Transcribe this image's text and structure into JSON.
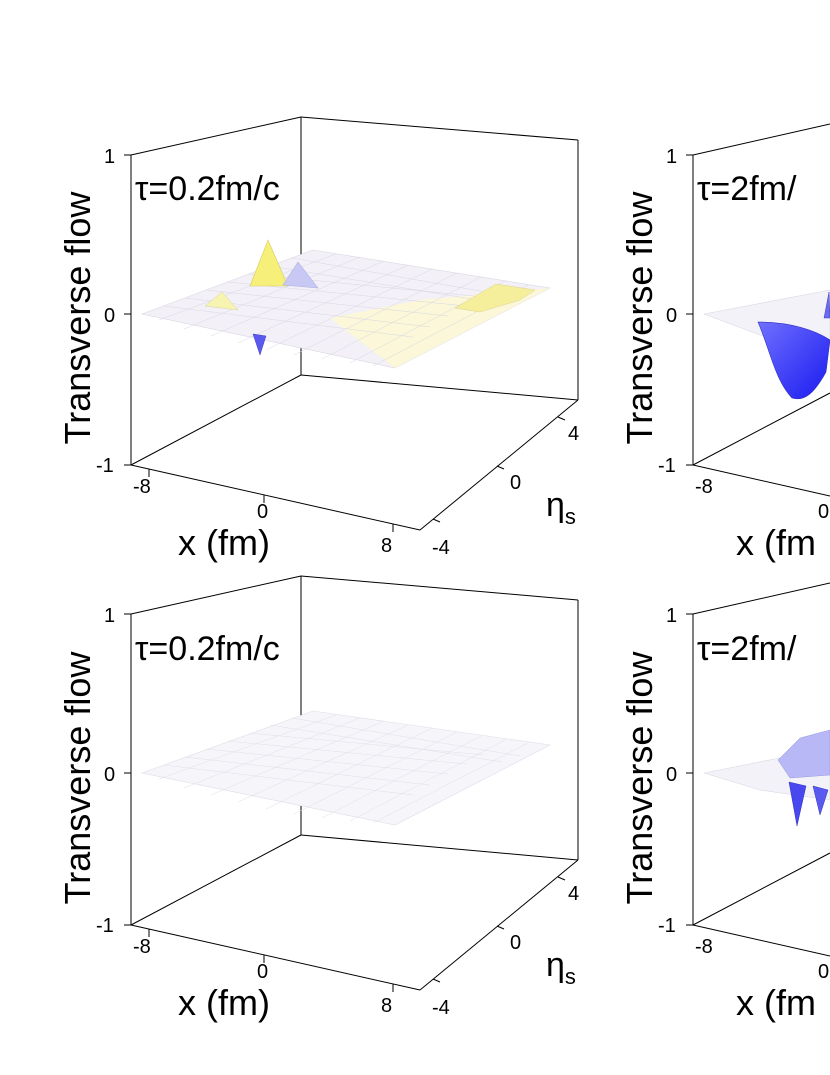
{
  "chart_data": [
    {
      "type": "surface3d",
      "panel": "top-left",
      "annotation": "τ=0.2fm/c",
      "zlabel": "Transverse flow",
      "xlabel": "x (fm)",
      "ylabel_symbol": "η",
      "ylabel_subscript": "s",
      "z_ticks": [
        "1",
        "0",
        "-1"
      ],
      "x_ticks": [
        "-8",
        "0",
        "8"
      ],
      "y_ticks": [
        "4",
        "0",
        "-4"
      ],
      "zlim": [
        -1,
        1
      ],
      "xlim": [
        -10,
        10
      ],
      "ylim": [
        -5,
        5
      ],
      "surface_colors": {
        "positive": "#f0f060",
        "negative": "#3a3af0",
        "neutral": "#ffffff"
      },
      "features": [
        {
          "x": -7.5,
          "eta": 0.8,
          "z": 0.45
        },
        {
          "x": -5.5,
          "eta": 0.2,
          "z": 0.2
        },
        {
          "x": -7.8,
          "eta": -0.2,
          "z": -0.25
        },
        {
          "x": -3.0,
          "eta": -0.4,
          "z": 0.1
        },
        {
          "x": 6.5,
          "eta": 0.4,
          "z": 0.2
        },
        {
          "x": 7.2,
          "eta": 0.9,
          "z": 0.15
        }
      ]
    },
    {
      "type": "surface3d",
      "panel": "top-right",
      "annotation": "τ=2fm/",
      "zlabel": "Transverse flow",
      "xlabel": "x (fm",
      "z_ticks": [
        "1",
        "0",
        "-1"
      ],
      "x_ticks": [
        "-8",
        "0"
      ],
      "zlim": [
        -1,
        1
      ],
      "features": [
        {
          "x": -6.0,
          "eta": -0.2,
          "z": -0.45
        },
        {
          "x": -3.0,
          "eta": 0.5,
          "z": 0.15
        }
      ]
    },
    {
      "type": "surface3d",
      "panel": "bottom-left",
      "annotation": "τ=0.2fm/c",
      "zlabel": "Transverse flow",
      "xlabel": "x (fm)",
      "ylabel_symbol": "η",
      "ylabel_subscript": "s",
      "z_ticks": [
        "1",
        "0",
        "-1"
      ],
      "x_ticks": [
        "-8",
        "0",
        "8"
      ],
      "y_ticks": [
        "4",
        "0",
        "-4"
      ],
      "zlim": [
        -1,
        1
      ],
      "features": []
    },
    {
      "type": "surface3d",
      "panel": "bottom-right",
      "annotation": "τ=2fm/",
      "zlabel": "Transverse flow",
      "xlabel": "x (fm",
      "z_ticks": [
        "1",
        "0",
        "-1"
      ],
      "x_ticks": [
        "-8",
        "0"
      ],
      "zlim": [
        -1,
        1
      ],
      "features": [
        {
          "x": -6.5,
          "eta": -0.3,
          "z": -0.25
        },
        {
          "x": -5.0,
          "eta": -0.5,
          "z": -0.18
        },
        {
          "x": -3.0,
          "eta": 0.3,
          "z": 0.12
        }
      ]
    }
  ]
}
